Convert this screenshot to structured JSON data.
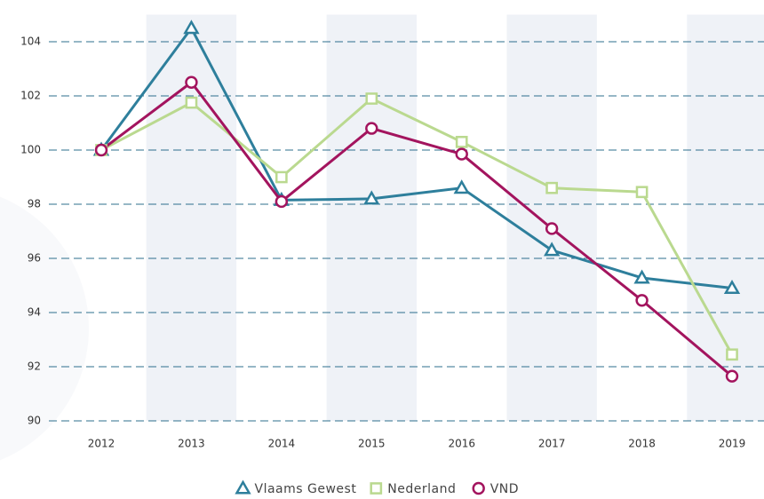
{
  "chart_data": {
    "type": "line",
    "categories": [
      "2012",
      "2013",
      "2014",
      "2015",
      "2016",
      "2017",
      "2018",
      "2019"
    ],
    "series": [
      {
        "name": "Vlaams Gewest",
        "color": "#2e7f9c",
        "marker": "triangle",
        "values": [
          100,
          104.5,
          98.15,
          98.2,
          98.6,
          96.3,
          95.28,
          94.9
        ]
      },
      {
        "name": "Nederland",
        "color": "#bad98f",
        "marker": "square",
        "values": [
          100,
          101.75,
          99.0,
          101.9,
          100.3,
          98.6,
          98.45,
          92.45
        ]
      },
      {
        "name": "VND",
        "color": "#a3145e",
        "marker": "circle",
        "values": [
          100,
          102.5,
          98.1,
          100.8,
          99.85,
          97.1,
          94.45,
          91.65
        ]
      }
    ],
    "ylim": [
      90,
      105
    ],
    "yticks": [
      90,
      92,
      94,
      96,
      98,
      100,
      102,
      104
    ],
    "grid": true,
    "legend": "bottom"
  }
}
